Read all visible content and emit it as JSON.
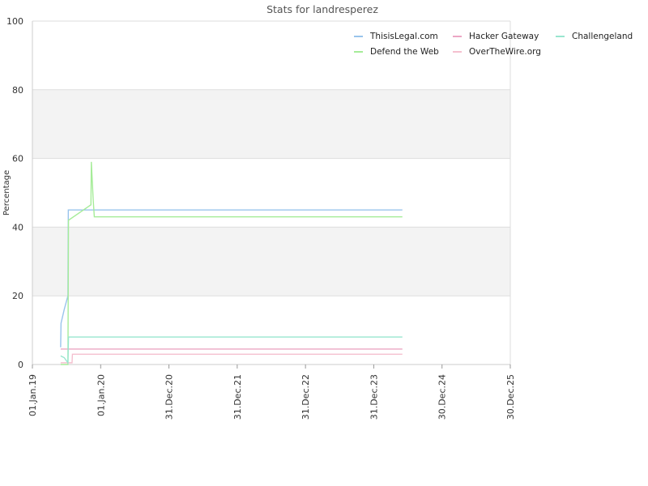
{
  "chart_data": {
    "type": "line",
    "title": "Stats for landresperez",
    "xlabel": "",
    "ylabel": "Percentage",
    "ylim": [
      0,
      100
    ],
    "xlim": [
      "2019-01-01",
      "2025-12-30"
    ],
    "y_ticks": [
      0,
      20,
      40,
      60,
      80,
      100
    ],
    "x_ticks": [
      {
        "date": "2019-01-01",
        "label": "01.Jan.19"
      },
      {
        "date": "2020-01-01",
        "label": "01.Jan.20"
      },
      {
        "date": "2020-12-31",
        "label": "31.Dec.20"
      },
      {
        "date": "2021-12-31",
        "label": "31.Dec.21"
      },
      {
        "date": "2022-12-31",
        "label": "31.Dec.22"
      },
      {
        "date": "2023-12-31",
        "label": "31.Dec.23"
      },
      {
        "date": "2024-12-30",
        "label": "30.Dec.24"
      },
      {
        "date": "2025-12-30",
        "label": "30.Dec.25"
      }
    ],
    "grid": true,
    "legend_placement": "top-right",
    "series": [
      {
        "name": "ThisisLegal.com",
        "color": "#99c4ec",
        "points": [
          [
            "2019-06-01",
            5
          ],
          [
            "2019-06-03",
            12
          ],
          [
            "2019-06-20",
            16
          ],
          [
            "2019-07-10",
            20
          ],
          [
            "2019-07-12",
            45
          ],
          [
            "2024-06-01",
            45
          ]
        ]
      },
      {
        "name": "Defend the Web",
        "color": "#a6ec99",
        "points": [
          [
            "2019-06-01",
            0
          ],
          [
            "2019-07-10",
            0
          ],
          [
            "2019-07-13",
            42
          ],
          [
            "2019-11-10",
            46.5
          ],
          [
            "2019-11-12",
            59
          ],
          [
            "2019-11-22",
            48
          ],
          [
            "2019-11-28",
            43
          ],
          [
            "2024-06-01",
            43
          ]
        ]
      },
      {
        "name": "Hacker Gateway",
        "color": "#eca6c4",
        "points": [
          [
            "2019-06-01",
            4.5
          ],
          [
            "2024-06-01",
            4.5
          ]
        ]
      },
      {
        "name": "OverTheWire.org",
        "color": "#f5c0cf",
        "points": [
          [
            "2019-06-01",
            0.5
          ],
          [
            "2019-08-01",
            0.5
          ],
          [
            "2019-08-03",
            3
          ],
          [
            "2024-06-01",
            3
          ]
        ]
      },
      {
        "name": "Challengeland",
        "color": "#99e6cf",
        "points": [
          [
            "2019-06-01",
            2.5
          ],
          [
            "2019-06-20",
            2
          ],
          [
            "2019-07-10",
            0.5
          ],
          [
            "2019-07-13",
            8
          ],
          [
            "2024-06-01",
            8
          ]
        ]
      }
    ],
    "legend_order": [
      "ThisisLegal.com",
      "Hacker Gateway",
      "Challengeland",
      "Defend the Web",
      "OverTheWire.org"
    ]
  }
}
